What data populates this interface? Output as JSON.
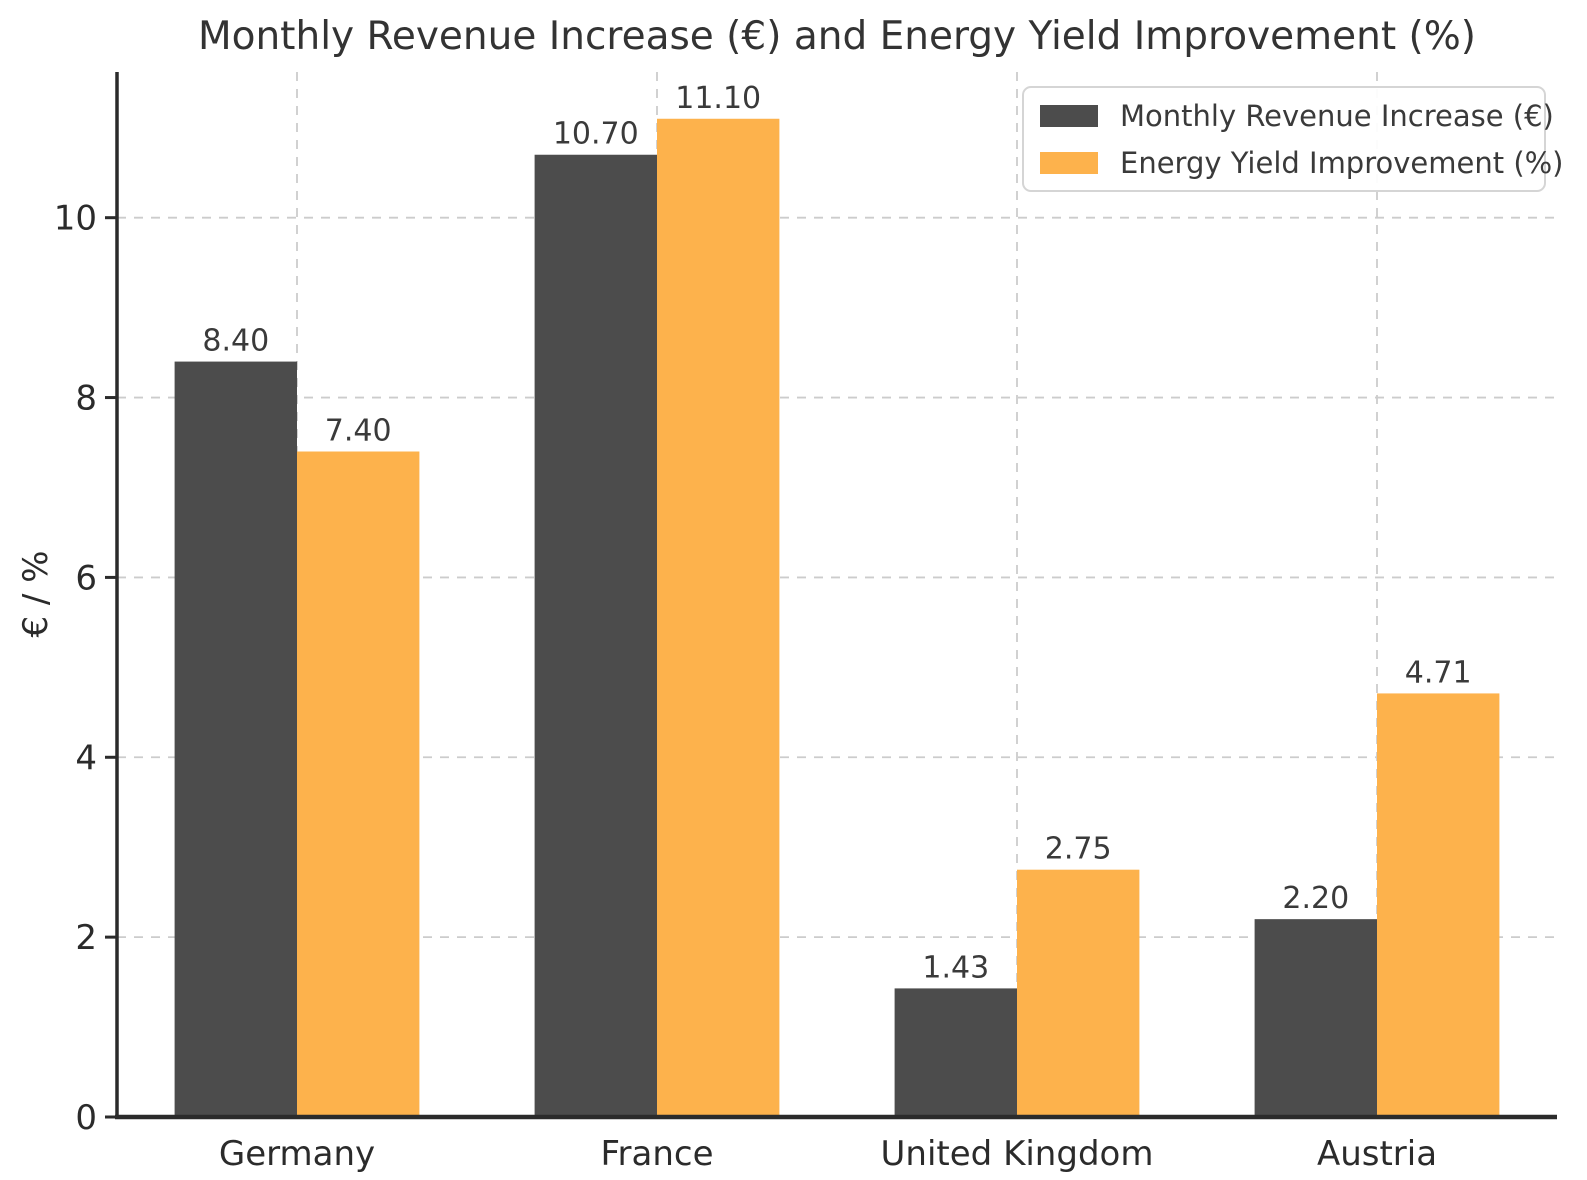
{
  "title": "Monthly Revenue Increase (€) and Energy Yield Improvement (%)",
  "colors": {
    "revenue_bar": "#4c4c4c",
    "yield_bar": "#fdb24c",
    "grid": "#cccccc",
    "axis": "#2b2b2b",
    "text": "#333333",
    "value_label": "#3a3a3a",
    "background": "#ffffff",
    "legend_border": "#d5d5d5"
  },
  "chart_data": {
    "type": "bar",
    "title": "Monthly Revenue Increase (€) and Energy Yield Improvement (%)",
    "categories": [
      "Germany",
      "France",
      "United Kingdom",
      "Austria"
    ],
    "series": [
      {
        "name": "Monthly Revenue Increase (€)",
        "color": "#4c4c4c",
        "values": [
          8.4,
          10.7,
          1.43,
          2.2
        ],
        "value_labels": [
          "8.40",
          "10.70",
          "1.43",
          "2.20"
        ]
      },
      {
        "name": "Energy Yield Improvement (%)",
        "color": "#fdb24c",
        "values": [
          7.4,
          11.1,
          2.75,
          4.71
        ],
        "value_labels": [
          "7.40",
          "11.10",
          "2.75",
          "4.71"
        ]
      }
    ],
    "xlabel": "",
    "ylabel": "€ / %",
    "ylim": [
      0,
      11.62
    ],
    "yticks": [
      0,
      2,
      4,
      6,
      8,
      10
    ],
    "ytick_labels": [
      "0",
      "2",
      "4",
      "6",
      "8",
      "10"
    ],
    "grid": true,
    "grid_style": "dashed",
    "legend_position": "upper right"
  }
}
